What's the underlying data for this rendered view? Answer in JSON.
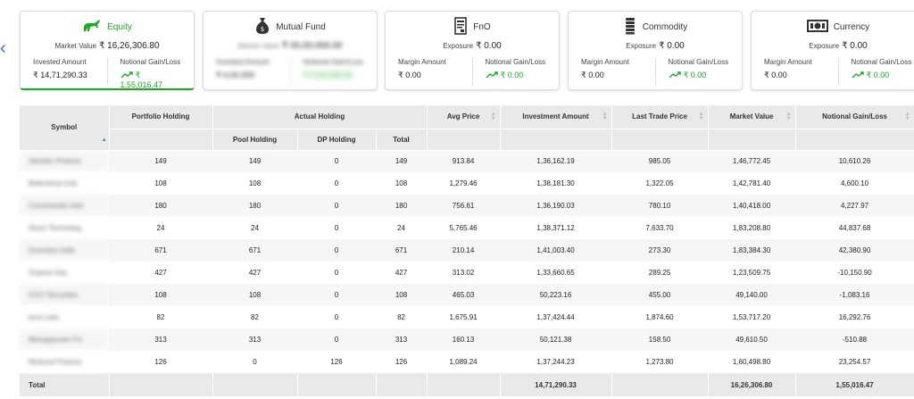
{
  "cards": [
    {
      "title": "Equity",
      "icon": "bull-icon",
      "mid_label": "Market Value",
      "mid_value": "₹ 16,26,306.80",
      "left_label": "Invested Amount",
      "left_value": "₹ 14,71,290.33",
      "right_label": "Notional Gain/Loss",
      "right_value": "₹ 1,55,016.47",
      "active": true
    },
    {
      "title": "Mutual Fund",
      "icon": "money-bag-icon",
      "mid_label": "Market Value",
      "mid_value": "₹ 00,00,000.00",
      "left_label": "Invested Amount",
      "left_value": "₹ 0,00,000",
      "right_label": "Notional Gain/Loss",
      "right_value": "₹ 0,00,000.00"
    },
    {
      "title": "FnO",
      "icon": "document-icon",
      "mid_label": "Exposure",
      "mid_value": "₹ 0.00",
      "left_label": "Margin Amount",
      "left_value": "₹ 0.00",
      "right_label": "Notional Gain/Loss",
      "right_value": "₹ 0.00"
    },
    {
      "title": "Commodity",
      "icon": "coin-stack-icon",
      "mid_label": "Exposure",
      "mid_value": "₹ 0.00",
      "left_label": "Margin Amount",
      "left_value": "₹ 0.00",
      "right_label": "Notional Gain/Loss",
      "right_value": "₹ 0.00"
    },
    {
      "title": "Currency",
      "icon": "banknote-icon",
      "mid_label": "Exposure",
      "mid_value": "₹ 0.00",
      "left_label": "Margin Amount",
      "left_value": "₹ 0.00",
      "right_label": "Notional Gain/Loss",
      "right_value": "₹ 0.00"
    }
  ],
  "table": {
    "headers": {
      "symbol": "Symbol",
      "portfolio_holding": "Portfolio Holding",
      "actual_holding": "Actual Holding",
      "pool_holding": "Pool Holding",
      "dp_holding": "DP Holding",
      "total": "Total",
      "avg_price": "Avg Price",
      "investment_amount": "Investment Amount",
      "last_trade_price": "Last Trade Price",
      "market_value": "Market Value",
      "notional_gain_loss": "Notional Gain/Loss"
    },
    "rows": [
      {
        "symbol": "Alembic Pharma",
        "portfolio": "149",
        "pool": "149",
        "dp": "0",
        "total": "149",
        "avg": "913.84",
        "invest": "1,36,162.19",
        "ltp": "985.05",
        "mv": "1,46,772.45",
        "gl": "10,610.26"
      },
      {
        "symbol": "Balkrishna Inds",
        "portfolio": "108",
        "pool": "108",
        "dp": "0",
        "total": "108",
        "avg": "1,279.46",
        "invest": "1,38,181.30",
        "ltp": "1,322.05",
        "mv": "1,42,781.40",
        "gl": "4,600.10"
      },
      {
        "symbol": "Coromandel Inter",
        "portfolio": "180",
        "pool": "180",
        "dp": "0",
        "total": "180",
        "avg": "756.61",
        "invest": "1,36,190.03",
        "ltp": "780.10",
        "mv": "1,40,418.00",
        "gl": "4,227.97"
      },
      {
        "symbol": "Dixon Technolog",
        "portfolio": "24",
        "pool": "24",
        "dp": "0",
        "total": "24",
        "avg": "5,765.46",
        "invest": "1,38,371.12",
        "ltp": "7,633.70",
        "mv": "1,83,208.80",
        "gl": "44,837.68"
      },
      {
        "symbol": "Granules India",
        "portfolio": "671",
        "pool": "671",
        "dp": "0",
        "total": "671",
        "avg": "210.14",
        "invest": "1,41,003.40",
        "ltp": "273.30",
        "mv": "1,83,384.30",
        "gl": "42,380.90"
      },
      {
        "symbol": "Gujarat Gas",
        "portfolio": "427",
        "pool": "427",
        "dp": "0",
        "total": "427",
        "avg": "313.02",
        "invest": "1,33,660.65",
        "ltp": "289.25",
        "mv": "1,23,509.75",
        "gl": "-10,150.90"
      },
      {
        "symbol": "ICICI Securities",
        "portfolio": "108",
        "pool": "108",
        "dp": "0",
        "total": "108",
        "avg": "465.03",
        "invest": "50,223.16",
        "ltp": "455.00",
        "mv": "49,140.00",
        "gl": "-1,083.16"
      },
      {
        "symbol": "Ipca Labs",
        "portfolio": "82",
        "pool": "82",
        "dp": "0",
        "total": "82",
        "avg": "1,675.91",
        "invest": "1,37,424.44",
        "ltp": "1,874.60",
        "mv": "1,53,717.20",
        "gl": "16,292.76"
      },
      {
        "symbol": "Manappuram Fin",
        "portfolio": "313",
        "pool": "313",
        "dp": "0",
        "total": "313",
        "avg": "160.13",
        "invest": "50,121.38",
        "ltp": "158.50",
        "mv": "49,610.50",
        "gl": "-510.88"
      },
      {
        "symbol": "Muthoot Finance",
        "portfolio": "126",
        "pool": "0",
        "dp": "126",
        "total": "126",
        "avg": "1,089.24",
        "invest": "1,37,244.23",
        "ltp": "1,273.80",
        "mv": "1,60,498.80",
        "gl": "23,254.57"
      }
    ],
    "footer": {
      "label": "Total",
      "investment_amount": "14,71,290.33",
      "market_value": "16,26,306.80",
      "notional_gain_loss": "1,55,016.47"
    }
  },
  "colors": {
    "accent_green": "#1fa824",
    "header_bg": "#e9e9e9",
    "nav_blue": "#2a6fd6"
  }
}
